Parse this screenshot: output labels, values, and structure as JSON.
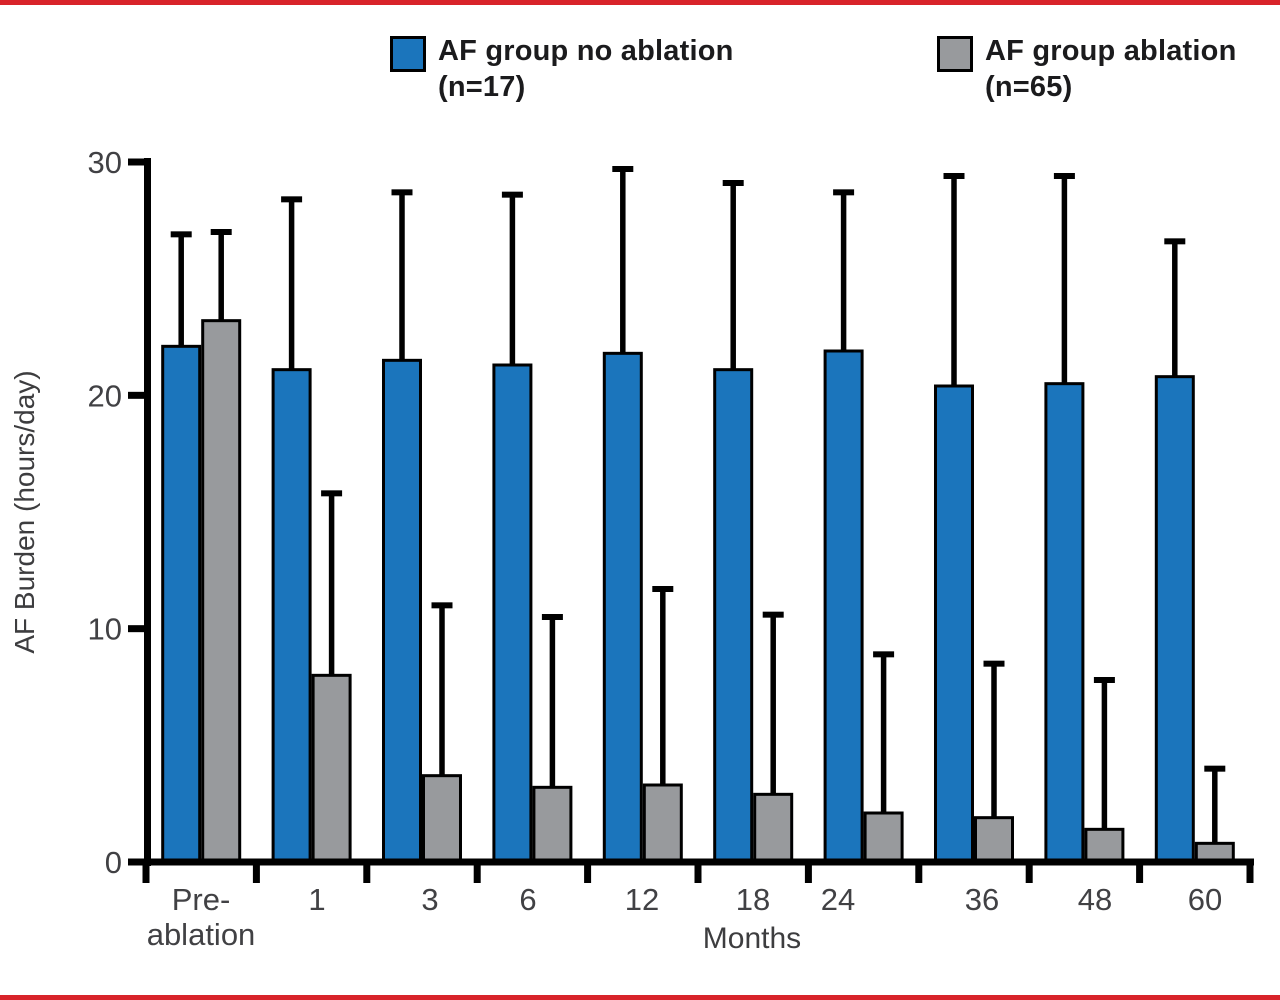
{
  "page": {
    "border_color": "#d8232a",
    "background": "#ffffff"
  },
  "legend": {
    "items": [
      {
        "label": "AF group no ablation",
        "sublabel": "(n=17)",
        "color": "#1b75bc"
      },
      {
        "label": "AF group ablation",
        "sublabel": "(n=65)",
        "color": "#989a9d"
      }
    ]
  },
  "chart_data": {
    "type": "bar",
    "title": "",
    "xlabel": "Months",
    "ylabel": "AF Burden (hours/day)",
    "ylim": [
      0,
      30
    ],
    "yticks": [
      0,
      10,
      20,
      30
    ],
    "grid": false,
    "legend_position": "top",
    "error_bars": "upper whiskers with caps",
    "bar_outline_color": "#000000",
    "axis_color": "#000000",
    "categories": [
      "Pre-\nablation",
      "1",
      "3",
      "6",
      "12",
      "18",
      "24",
      "36",
      "48",
      "60"
    ],
    "series": [
      {
        "name": "AF group no ablation (n=17)",
        "color": "#1b75bc",
        "values": [
          22.1,
          21.1,
          21.5,
          21.3,
          21.8,
          21.1,
          21.9,
          20.4,
          20.5,
          20.8
        ],
        "error_top": [
          26.9,
          28.4,
          28.7,
          28.6,
          29.7,
          29.1,
          28.7,
          29.4,
          29.4,
          26.6
        ]
      },
      {
        "name": "AF group ablation (n=65)",
        "color": "#989a9d",
        "values": [
          23.2,
          8.0,
          3.7,
          3.2,
          3.3,
          2.9,
          2.1,
          1.9,
          1.4,
          0.8
        ],
        "error_top": [
          27.0,
          15.8,
          11.0,
          10.5,
          11.7,
          10.6,
          8.9,
          8.5,
          7.8,
          4.0
        ]
      }
    ]
  }
}
